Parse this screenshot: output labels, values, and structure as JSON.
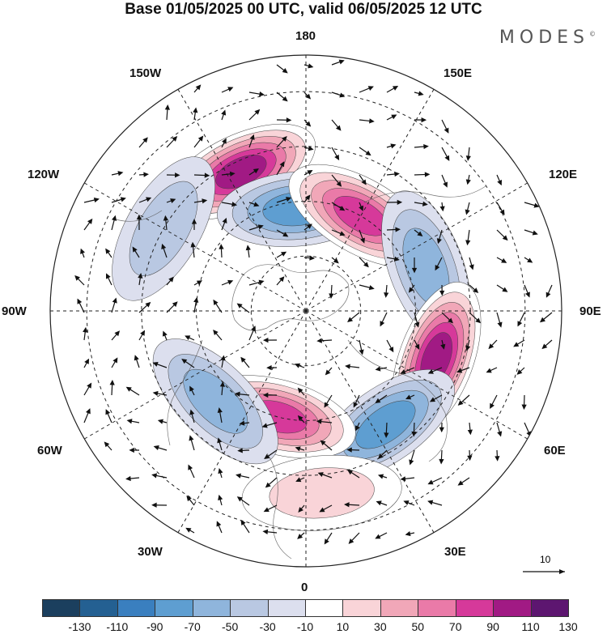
{
  "title": "Base 01/05/2025 00 UTC, valid 06/05/2025 12 UTC",
  "brand": "MODES",
  "brand_mark": "©",
  "longitude_labels": {
    "n": "180",
    "nw150": "150W",
    "ne150": "150E",
    "w120": "120W",
    "e120": "120E",
    "w90": "90W",
    "e90": "90E",
    "w60": "60W",
    "e60": "60E",
    "w30": "30W",
    "e30": "30E",
    "s": "0"
  },
  "reference_vector": "10",
  "colorbar": {
    "colors": [
      "#1b3f5e",
      "#246092",
      "#3a7fbf",
      "#5e9ed1",
      "#8fb5dc",
      "#b9c8e2",
      "#dcdfee",
      "#ffffff",
      "#f9d4d8",
      "#f1a7b8",
      "#ea7aa8",
      "#d6399a",
      "#a11a84",
      "#5d1670"
    ],
    "ticks": [
      "-130",
      "-110",
      "-90",
      "-70",
      "-50",
      "-30",
      "-10",
      "10",
      "30",
      "50",
      "70",
      "90",
      "110",
      "130"
    ]
  },
  "anomaly_centers": [
    {
      "lon": -155,
      "lat": 48,
      "value": 120
    },
    {
      "lon": -175,
      "lat": 62,
      "value": -80
    },
    {
      "lon": 150,
      "lat": 60,
      "value": 95
    },
    {
      "lon": 110,
      "lat": 55,
      "value": -60
    },
    {
      "lon": 70,
      "lat": 52,
      "value": 110
    },
    {
      "lon": 35,
      "lat": 52,
      "value": -70
    },
    {
      "lon": -15,
      "lat": 60,
      "value": 90
    },
    {
      "lon": -45,
      "lat": 55,
      "value": -60
    },
    {
      "lon": -120,
      "lat": 45,
      "value": -40
    },
    {
      "lon": 5,
      "lat": 40,
      "value": 40
    }
  ]
}
